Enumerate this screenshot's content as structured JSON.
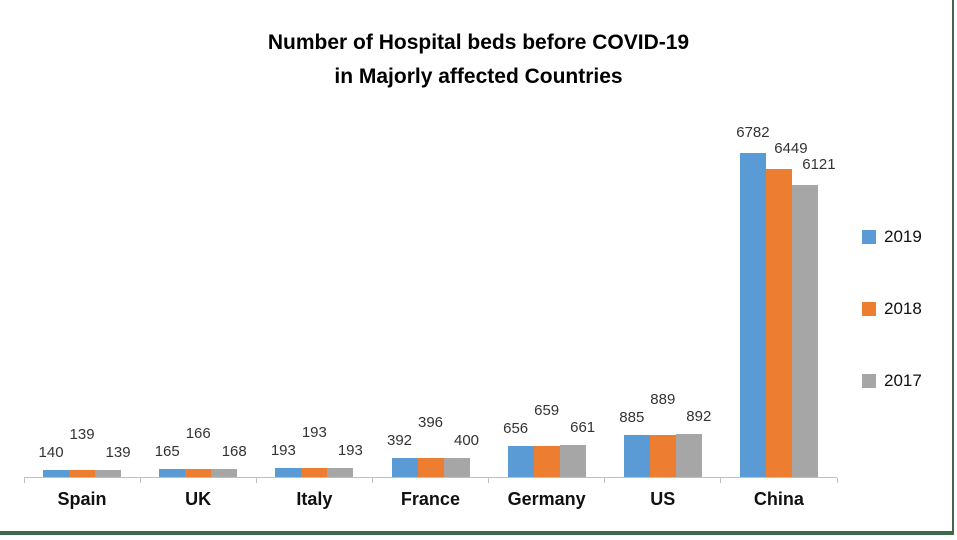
{
  "ui": {
    "background_color": "#FFFFFF",
    "accent_border_color": "#41684B"
  },
  "chart_data": {
    "type": "bar",
    "title": "Number of Hospital beds before COVID-19 in Majorly affected Countries",
    "title_lines": [
      "Number of Hospital beds before COVID-19",
      "in Majorly affected Countries"
    ],
    "categories": [
      "Spain",
      "UK",
      "Italy",
      "France",
      "Germany",
      "US",
      "China"
    ],
    "series": [
      {
        "name": "2019",
        "color": "#5B9BD5",
        "pattern": "solid",
        "values": [
          140,
          165,
          193,
          392,
          656,
          885,
          6782
        ]
      },
      {
        "name": "2018",
        "color": "#ED7D31",
        "pattern": "solid",
        "values": [
          139,
          166,
          193,
          396,
          659,
          889,
          6449
        ]
      },
      {
        "name": "2017",
        "color": "#A6A6A6",
        "pattern": "dots",
        "values": [
          139,
          168,
          193,
          400,
          661,
          892,
          6121
        ]
      }
    ],
    "xlabel": "",
    "ylabel": "",
    "ylim": [
      0,
      7000
    ],
    "y_axis_visible": false,
    "gridlines": false,
    "data_labels": true,
    "legend": {
      "position": "right",
      "entries": [
        "2019",
        "2018",
        "2017"
      ]
    },
    "axis_color": "#BFBFBF",
    "data_label_color": "#333333",
    "category_label_color": "#111111",
    "title_color": "#000000"
  }
}
